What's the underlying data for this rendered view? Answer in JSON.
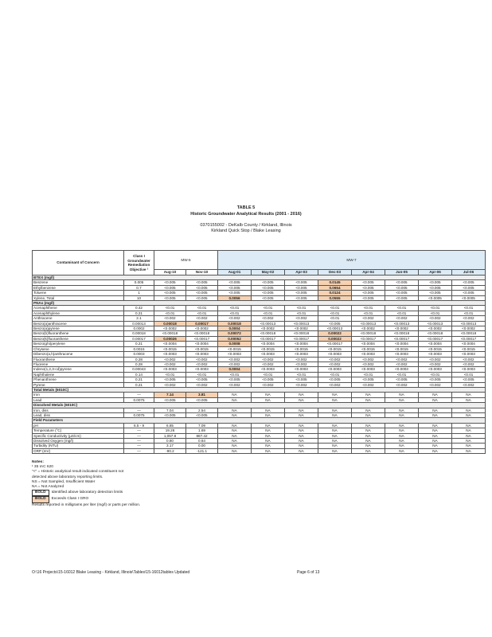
{
  "header": {
    "table_no": "TABLE 5",
    "title": "Historic Groundwater Analytical Results (2001 - 2016)",
    "site_id": "0370155002 - DeKalb County / Kirkland, Illinois",
    "site_name": "Kirkland Quick Stop / Blake Leasing"
  },
  "table": {
    "contaminant_header": "Contaminant of Concern",
    "objective_header": "Class I Groundwater Remediation Objective ¹",
    "wells": [
      "MW-6",
      "MW-7"
    ],
    "dates": [
      "Aug-10",
      "Nov-10",
      "Aug-01",
      "May-02",
      "Apr-03",
      "Dec-03",
      "Apr-04",
      "Jun-05",
      "Apr-06",
      "Jul-06"
    ],
    "rows": [
      {
        "section": "BTEX (mg/l)"
      },
      {
        "label": "Benzene",
        "objective": "0.005",
        "values": [
          "<0.005",
          "<0.005",
          "<0.005",
          "<0.005",
          "<0.005",
          "0.0145",
          "<0.005",
          "<0.005",
          "<0.005",
          "<0.005"
        ]
      },
      {
        "label": "Ethylbenzene",
        "objective": "0.7",
        "values": [
          "<0.005",
          "<0.005",
          "<0.005",
          "<0.005",
          "<0.005",
          "0.0654",
          "<0.005",
          "<0.005",
          "<0.005",
          "<0.005"
        ]
      },
      {
        "label": "Toluene",
        "objective": "1",
        "values": [
          "<0.005",
          "<0.005",
          "<0.005",
          "<0.005",
          "<0.005",
          "0.0124",
          "<0.005",
          "<0.005",
          "<0.005",
          "<0.005"
        ]
      },
      {
        "label": "Xylene, Total",
        "objective": "10",
        "values": [
          "<0.005",
          "<0.005",
          "0.0056",
          "<0.005",
          "<0.005",
          "0.0555",
          "<0.005",
          "<0.005",
          "<0.0005",
          "<0.0005"
        ]
      },
      {
        "section": "PNAs (mg/l)"
      },
      {
        "label": "Acenaphthene",
        "objective": "0.42",
        "values": [
          "<0.01",
          "<0.01",
          "<0.01",
          "<0.01",
          "<0.01",
          "<0.01",
          "<0.01",
          "<0.01",
          "<0.01",
          "<0.01"
        ]
      },
      {
        "label": "Acenaphthylene",
        "objective": "0.21",
        "values": [
          "<0.01",
          "<0.01",
          "<0.01",
          "<0.01",
          "<0.01",
          "<0.01",
          "<0.01",
          "<0.01",
          "<0.01",
          "<0.01"
        ]
      },
      {
        "label": "Anthracene",
        "objective": "2.1",
        "values": [
          "<0.002",
          "<0.002",
          "<0.002",
          "<0.002",
          "<0.002",
          "<0.01",
          "<0.002",
          "<0.002",
          "<0.002",
          "<0.002"
        ]
      },
      {
        "label": "Benzo(a)anthracene",
        "objective": "0.00013",
        "values": [
          "0.00018",
          "0.00017",
          "0.00018",
          "<0.00013",
          "<0.00013",
          "<0.005",
          "<0.00013",
          "<0.00013",
          "<0.00013",
          "<0.00013"
        ]
      },
      {
        "label": "Benzo(a)pyrene",
        "objective": "0.0002",
        "values": [
          "<0.0002",
          "<0.0002",
          "0.0004",
          "<0.0002",
          "<0.0002",
          "<0.00013",
          "<0.0002",
          "<0.0002",
          "<0.0002",
          "<0.0002"
        ]
      },
      {
        "label": "Benzo(b)fluoranthene",
        "objective": "0.00018",
        "values": [
          "<0.00018",
          "<0.00018",
          "0.00072",
          "<0.00018",
          "<0.00018",
          "0.00022",
          "<0.00018",
          "<0.00018",
          "<0.00018",
          "<0.00018"
        ]
      },
      {
        "label": "Benzo(k)fluoranthene",
        "objective": "0.00017",
        "values": [
          "0.00026",
          "<0.00017",
          "0.00052",
          "<0.00017",
          "<0.00017",
          "0.00022",
          "<0.00017",
          "<0.00017",
          "<0.00017",
          "<0.00017"
        ]
      },
      {
        "label": "Benzo(ghi)perylene",
        "objective": "0.21",
        "values": [
          "<0.0004",
          "<0.0004",
          "0.0008",
          "<0.0004",
          "<0.0004",
          "<0.00017",
          "<0.0004",
          "<0.0004",
          "<0.0004",
          "<0.0004"
        ]
      },
      {
        "label": "Chrysene",
        "objective": "0.0015",
        "values": [
          "<0.0015",
          "<0.0015",
          "<0.0015",
          "<0.0015",
          "<0.0015",
          "<0.0015",
          "<0.0015",
          "<0.0015",
          "<0.0015",
          "<0.0015"
        ]
      },
      {
        "label": "Dibenzo(a,h)anthracene",
        "objective": "0.0003",
        "values": [
          "<0.0003",
          "<0.0003",
          "<0.0003",
          "<0.0003",
          "<0.0003",
          "<0.0003",
          "<0.0003",
          "<0.0003",
          "<0.0003",
          "<0.0003"
        ]
      },
      {
        "label": "Fluoranthene",
        "objective": "0.28",
        "values": [
          "<0.002",
          "<0.002",
          "<0.002",
          "<0.002",
          "<0.002",
          "<0.002",
          "<0.002",
          "<0.002",
          "<0.002",
          "<0.002"
        ]
      },
      {
        "label": "Fluorene",
        "objective": "0.28",
        "values": [
          "<0.002",
          "<0.002",
          "<0.002",
          "<0.002",
          "<0.002",
          "<0.002",
          "<0.002",
          "<0.002",
          "<0.002",
          "<0.002"
        ]
      },
      {
        "label": "Indeno(1,2,3-cd)pyrene",
        "objective": "0.00043",
        "values": [
          "<0.0003",
          "<0.0003",
          "0.0004",
          "<0.0003",
          "<0.0003",
          "<0.0003",
          "<0.0003",
          "<0.0003",
          "<0.0003",
          "<0.0003"
        ]
      },
      {
        "label": "Naphthalene",
        "objective": "0.14",
        "values": [
          "<0.01",
          "<0.01",
          "<0.01",
          "<0.01",
          "<0.01",
          "<0.01",
          "<0.01",
          "<0.01",
          "<0.01",
          "<0.01"
        ]
      },
      {
        "label": "Phenanthrene",
        "objective": "0.21",
        "values": [
          "<0.005",
          "<0.005",
          "<0.005",
          "<0.005",
          "<0.005",
          "<0.005",
          "<0.005",
          "<0.005",
          "<0.005",
          "<0.005"
        ]
      },
      {
        "label": "Pyrene",
        "objective": "0.21",
        "values": [
          "<0.002",
          "<0.002",
          "<0.002",
          "<0.002",
          "<0.002",
          "<0.002",
          "<0.002",
          "<0.002",
          "<0.002",
          "<0.002"
        ]
      },
      {
        "section": "Total Metals (6010C)"
      },
      {
        "label": "Iron",
        "objective": "—",
        "values": [
          "7.14",
          "3.81",
          "NA",
          "NA",
          "NA",
          "NA",
          "NA",
          "NA",
          "NA",
          "NA"
        ]
      },
      {
        "label": "Lead",
        "objective": "0.0075",
        "values": [
          "<0.005",
          "<0.005",
          "NA",
          "NA",
          "NA",
          "NA",
          "NA",
          "NA",
          "NA",
          "NA"
        ]
      },
      {
        "section": "Dissolved Metals (6010C)"
      },
      {
        "label": "Iron, diss",
        "objective": "—",
        "values": [
          "7.04",
          "2.54",
          "NA",
          "NA",
          "NA",
          "NA",
          "NA",
          "NA",
          "NA",
          "NA"
        ]
      },
      {
        "label": "Lead, diss",
        "objective": "0.0075",
        "values": [
          "<0.005",
          "<0.005",
          "NA",
          "NA",
          "NA",
          "NA",
          "NA",
          "NA",
          "NA",
          "NA"
        ]
      },
      {
        "section": "Field Parameters"
      },
      {
        "label": "pH",
        "objective": "6.5 - 9",
        "values": [
          "6.85",
          "7.09",
          "NA",
          "NA",
          "NA",
          "NA",
          "NA",
          "NA",
          "NA",
          "NA"
        ]
      },
      {
        "label": "Temperature (°C)",
        "objective": "—",
        "values": [
          "19.26",
          "1.69",
          "NA",
          "NA",
          "NA",
          "NA",
          "NA",
          "NA",
          "NA",
          "NA"
        ]
      },
      {
        "label": "Specific Conductivity (µS/cm)",
        "objective": "—",
        "values": [
          "1,057.8",
          "887.42",
          "NA",
          "NA",
          "NA",
          "NA",
          "NA",
          "NA",
          "NA",
          "NA"
        ]
      },
      {
        "label": "Dissolved Oxygen (mg/l)",
        "objective": "—",
        "values": [
          "0.80",
          "0.64",
          "NA",
          "NA",
          "NA",
          "NA",
          "NA",
          "NA",
          "NA",
          "NA"
        ]
      },
      {
        "label": "Turbidity (NTU)",
        "objective": "—",
        "values": [
          "3.17",
          "0.00",
          "NA",
          "NA",
          "NA",
          "NA",
          "NA",
          "NA",
          "NA",
          "NA"
        ]
      },
      {
        "label": "ORP (mV)",
        "objective": "—",
        "values": [
          "-90.2",
          "-121.1",
          "NA",
          "NA",
          "NA",
          "NA",
          "NA",
          "NA",
          "NA",
          "NA"
        ]
      }
    ]
  },
  "notes": {
    "heading": "Notes:",
    "items": [
      "¹ 35 IAC 620",
      "\"<\" = Historic analytical result indicated constituent not",
      "detected above laboratory reporting limits.",
      "NS = Not Sampled, Insufficient Water",
      "NA = Not Analyzed"
    ],
    "legend": [
      {
        "key": "BOLD",
        "text": "Identified above laboratory detection limits"
      },
      {
        "key": "BOLD",
        "text": "Exceeds Class I GRO"
      }
    ],
    "units": "Results reported in milligrams per liter (mg/l) or parts per million."
  },
  "footer": {
    "path": "O:\\16 Projects\\15-16012 Blake Leasing - Kirkland, Illinois\\Tables\\15-16012tables Updated",
    "page": "Page 6 of 13"
  }
}
